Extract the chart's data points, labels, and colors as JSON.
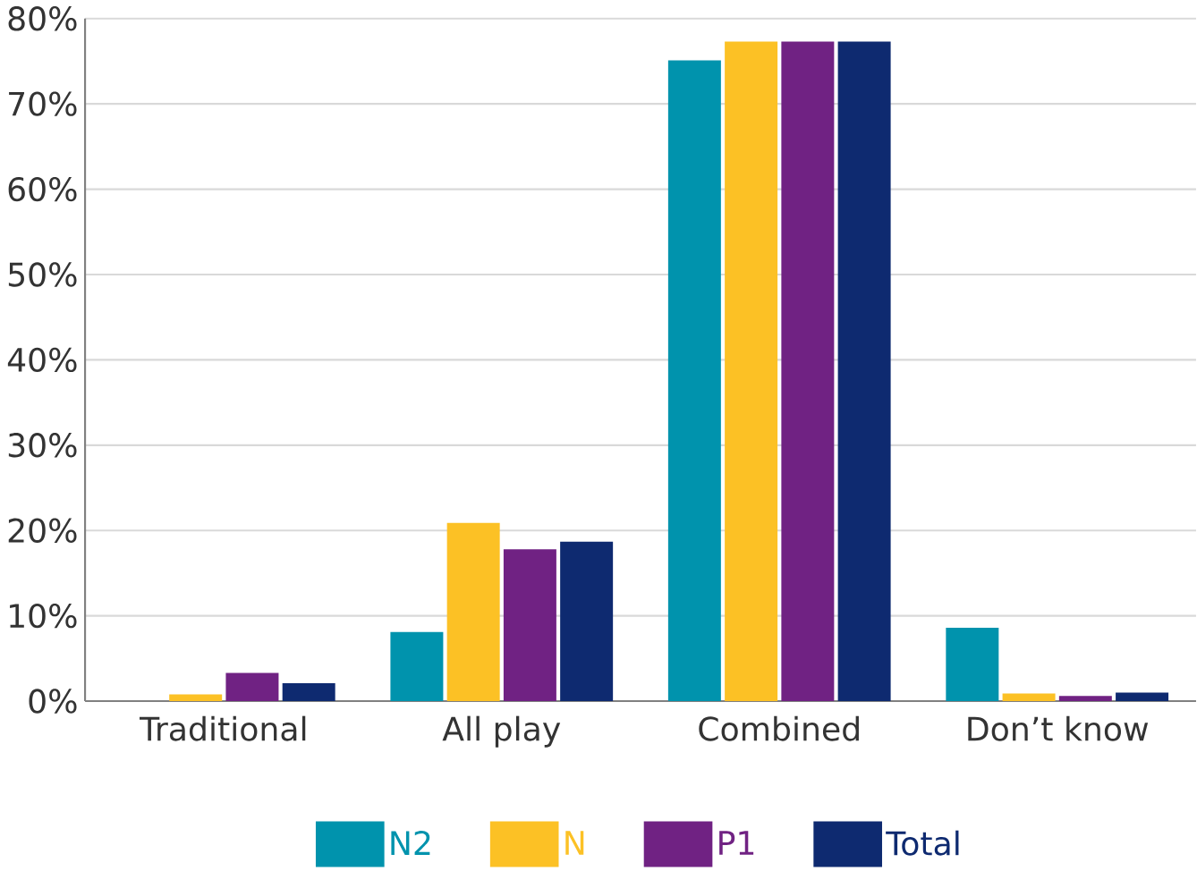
{
  "chart_data": {
    "type": "bar",
    "categories": [
      "Traditional",
      "All play",
      "Combined",
      "Don’t know"
    ],
    "series": [
      {
        "name": "N2",
        "color": "#0093ad",
        "values": [
          0,
          8.1,
          75.1,
          8.6
        ]
      },
      {
        "name": "N",
        "color": "#fcc125",
        "values": [
          0.8,
          20.9,
          77.3,
          0.9
        ]
      },
      {
        "name": "P1",
        "color": "#702283",
        "values": [
          3.3,
          17.8,
          77.3,
          0.6
        ]
      },
      {
        "name": "Total",
        "color": "#0e2a70",
        "values": [
          2.1,
          18.7,
          77.3,
          1.0
        ]
      }
    ],
    "ylim": [
      0,
      80
    ],
    "yticks": [
      {
        "value": 0,
        "label": "0%"
      },
      {
        "value": 10,
        "label": "10%"
      },
      {
        "value": 20,
        "label": "20%"
      },
      {
        "value": 30,
        "label": "30%"
      },
      {
        "value": 40,
        "label": "40%"
      },
      {
        "value": 50,
        "label": "50%"
      },
      {
        "value": 60,
        "label": "60%"
      },
      {
        "value": 70,
        "label": "70%"
      },
      {
        "value": 80,
        "label": "80%"
      }
    ],
    "grid": "y",
    "legend": "bottom"
  }
}
